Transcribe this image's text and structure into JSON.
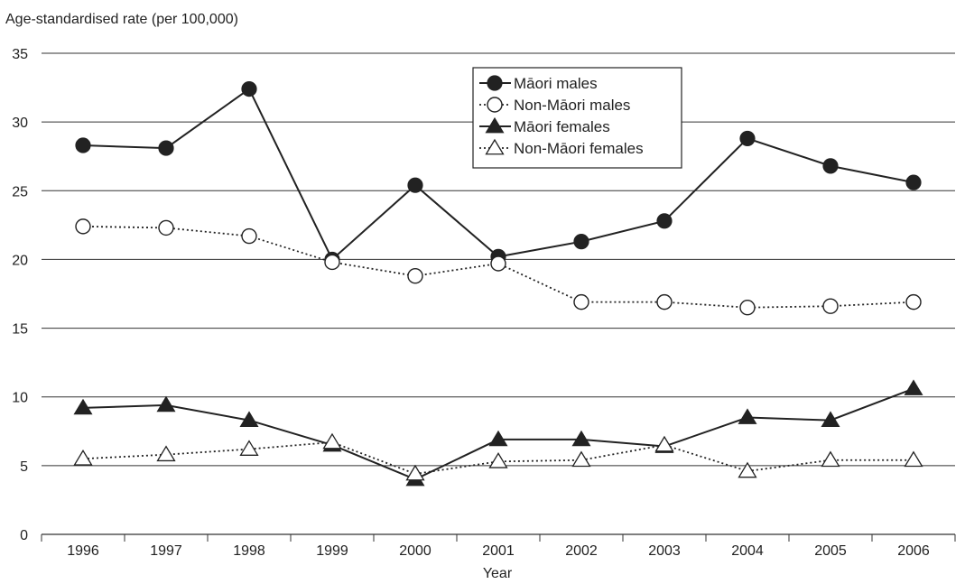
{
  "chart_data": {
    "type": "line",
    "title": "",
    "ylabel": "Age-standardised rate (per 100,000)",
    "xlabel": "Year",
    "x": [
      "1996",
      "1997",
      "1998",
      "1999",
      "2000",
      "2001",
      "2002",
      "2003",
      "2004",
      "2005",
      "2006"
    ],
    "ylim": [
      0,
      35
    ],
    "yticks": [
      0,
      5,
      10,
      15,
      20,
      25,
      30,
      35
    ],
    "grid": "horizontal",
    "legend_position": "top-center",
    "series": [
      {
        "name": "Māori males",
        "marker": "filled-circle",
        "line": "solid",
        "color": "#222222",
        "values": [
          28.3,
          28.1,
          32.4,
          20.0,
          25.4,
          20.2,
          21.3,
          22.8,
          28.8,
          26.8,
          25.6
        ]
      },
      {
        "name": "Non-Māori males",
        "marker": "open-circle",
        "line": "dotted",
        "color": "#222222",
        "values": [
          22.4,
          22.3,
          21.7,
          19.8,
          18.8,
          19.7,
          16.9,
          16.9,
          16.5,
          16.6,
          16.9
        ]
      },
      {
        "name": "Māori females",
        "marker": "filled-triangle",
        "line": "solid",
        "color": "#222222",
        "values": [
          9.2,
          9.4,
          8.3,
          6.5,
          4.0,
          6.9,
          6.9,
          6.4,
          8.5,
          8.3,
          10.6
        ]
      },
      {
        "name": "Non-Māori females",
        "marker": "open-triangle",
        "line": "dotted",
        "color": "#222222",
        "values": [
          5.5,
          5.8,
          6.2,
          6.7,
          4.4,
          5.3,
          5.4,
          6.5,
          4.6,
          5.4,
          5.4
        ]
      }
    ]
  }
}
